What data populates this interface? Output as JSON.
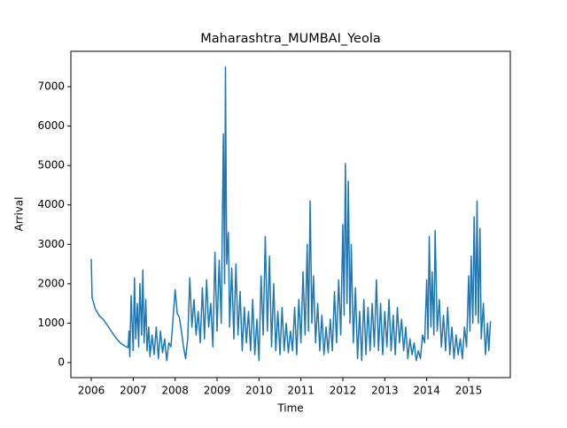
{
  "chart_data": {
    "type": "line",
    "title": "Maharashtra_MUMBAI_Yeola",
    "x_label": "Time",
    "y_label": "Arrival",
    "series": [
      {
        "color": "#1f77b4",
        "x": [
          2006.0,
          2006.02,
          2006.1,
          2006.2,
          2006.3,
          2006.4,
          2006.5,
          2006.6,
          2006.7,
          2006.8,
          2006.88,
          2006.9,
          2006.92,
          2006.95,
          2007.0,
          2007.03,
          2007.06,
          2007.1,
          2007.13,
          2007.16,
          2007.2,
          2007.23,
          2007.26,
          2007.3,
          2007.33,
          2007.37,
          2007.4,
          2007.45,
          2007.5,
          2007.55,
          2007.6,
          2007.65,
          2007.7,
          2007.75,
          2007.8,
          2007.85,
          2007.9,
          2007.95,
          2008.0,
          2008.05,
          2008.1,
          2008.15,
          2008.2,
          2008.25,
          2008.3,
          2008.35,
          2008.4,
          2008.45,
          2008.5,
          2008.55,
          2008.6,
          2008.65,
          2008.7,
          2008.75,
          2008.8,
          2008.85,
          2008.9,
          2008.95,
          2009.0,
          2009.05,
          2009.1,
          2009.15,
          2009.18,
          2009.2,
          2009.23,
          2009.27,
          2009.3,
          2009.35,
          2009.4,
          2009.45,
          2009.5,
          2009.55,
          2009.6,
          2009.65,
          2009.7,
          2009.75,
          2009.8,
          2009.85,
          2009.9,
          2009.95,
          2010.0,
          2010.05,
          2010.1,
          2010.15,
          2010.2,
          2010.25,
          2010.3,
          2010.35,
          2010.4,
          2010.45,
          2010.5,
          2010.55,
          2010.6,
          2010.65,
          2010.7,
          2010.75,
          2010.8,
          2010.85,
          2010.9,
          2010.95,
          2011.0,
          2011.05,
          2011.1,
          2011.15,
          2011.18,
          2011.22,
          2011.26,
          2011.3,
          2011.35,
          2011.4,
          2011.45,
          2011.5,
          2011.55,
          2011.6,
          2011.65,
          2011.7,
          2011.75,
          2011.8,
          2011.85,
          2011.9,
          2011.95,
          2012.0,
          2012.03,
          2012.06,
          2012.1,
          2012.13,
          2012.17,
          2012.2,
          2012.25,
          2012.3,
          2012.35,
          2012.4,
          2012.45,
          2012.5,
          2012.55,
          2012.6,
          2012.65,
          2012.7,
          2012.75,
          2012.8,
          2012.85,
          2012.9,
          2012.95,
          2013.0,
          2013.05,
          2013.1,
          2013.15,
          2013.2,
          2013.25,
          2013.3,
          2013.35,
          2013.4,
          2013.45,
          2013.5,
          2013.55,
          2013.6,
          2013.65,
          2013.7,
          2013.75,
          2013.8,
          2013.85,
          2013.9,
          2013.95,
          2014.0,
          2014.03,
          2014.06,
          2014.1,
          2014.13,
          2014.17,
          2014.2,
          2014.25,
          2014.3,
          2014.35,
          2014.4,
          2014.45,
          2014.5,
          2014.55,
          2014.6,
          2014.65,
          2014.7,
          2014.75,
          2014.8,
          2014.85,
          2014.9,
          2014.95,
          2015.0,
          2015.03,
          2015.06,
          2015.1,
          2015.13,
          2015.17,
          2015.2,
          2015.23,
          2015.27,
          2015.3,
          2015.35,
          2015.4,
          2015.45,
          2015.48,
          2015.52
        ],
        "values": [
          2630,
          1650,
          1350,
          1180,
          1080,
          920,
          760,
          610,
          490,
          420,
          380,
          800,
          150,
          1700,
          300,
          2150,
          600,
          1500,
          400,
          2000,
          700,
          2350,
          500,
          1600,
          300,
          900,
          150,
          700,
          200,
          900,
          100,
          800,
          250,
          600,
          50,
          500,
          400,
          1100,
          1850,
          1250,
          1150,
          800,
          400,
          100,
          600,
          2150,
          900,
          1600,
          700,
          1300,
          500,
          1900,
          600,
          2100,
          900,
          1500,
          400,
          2800,
          800,
          2600,
          1000,
          5800,
          2000,
          7500,
          2500,
          3300,
          900,
          2400,
          600,
          2500,
          700,
          1800,
          300,
          1400,
          500,
          1300,
          300,
          1600,
          200,
          1100,
          50,
          2200,
          700,
          3200,
          800,
          2700,
          400,
          2000,
          300,
          1300,
          200,
          1400,
          300,
          1000,
          250,
          800,
          300,
          1400,
          200,
          1600,
          500,
          2300,
          700,
          3000,
          800,
          4100,
          1000,
          2200,
          500,
          1500,
          300,
          1200,
          200,
          900,
          250,
          1100,
          300,
          1800,
          500,
          2100,
          700,
          3500,
          1200,
          5050,
          1500,
          4600,
          1000,
          3000,
          500,
          1900,
          100,
          1300,
          50,
          1600,
          200,
          1400,
          300,
          1500,
          400,
          2100,
          300,
          1500,
          200,
          1300,
          400,
          1600,
          300,
          1200,
          200,
          1400,
          500,
          1100,
          300,
          900,
          100,
          600,
          200,
          500,
          50,
          300,
          100,
          700,
          500,
          2100,
          600,
          3200,
          900,
          2300,
          700,
          3350,
          800,
          1600,
          400,
          1200,
          300,
          1400,
          200,
          900,
          100,
          700,
          200,
          600,
          100,
          900,
          400,
          2200,
          800,
          2700,
          1000,
          3700,
          1200,
          4100,
          1000,
          3400,
          600,
          1500,
          200,
          1000,
          300,
          1050
        ]
      }
    ],
    "xlim": [
      2005.514,
      2015.993
    ],
    "xticks": [
      2006,
      2007,
      2008,
      2009,
      2010,
      2011,
      2012,
      2013,
      2014,
      2015
    ],
    "ylim": [
      -381,
      7898
    ],
    "yticks": [
      0,
      1000,
      2000,
      3000,
      4000,
      5000,
      6000,
      7000
    ]
  }
}
